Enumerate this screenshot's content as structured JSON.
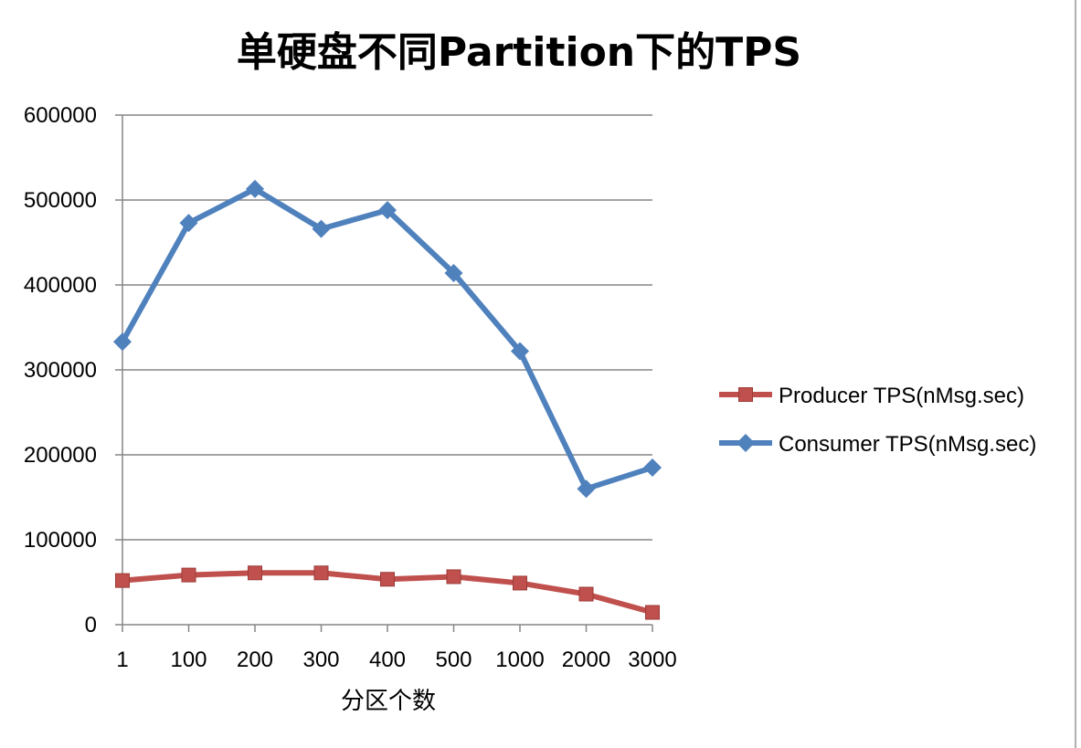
{
  "chart_data": {
    "type": "line",
    "title": "单硬盘不同Partition下的TPS",
    "xlabel": "分区个数",
    "ylabel": "",
    "categories": [
      "1",
      "100",
      "200",
      "300",
      "400",
      "500",
      "1000",
      "2000",
      "3000"
    ],
    "ylim": [
      0,
      600000
    ],
    "yticks": [
      0,
      100000,
      200000,
      300000,
      400000,
      500000,
      600000
    ],
    "ytick_labels": [
      "0",
      "100000",
      "200000",
      "300000",
      "400000",
      "500000",
      "600000"
    ],
    "grid": true,
    "legend_position": "right",
    "series": [
      {
        "name": "Producer TPS(nMsg.sec)",
        "color": "#c0504d",
        "marker": "square",
        "values": [
          52000,
          58500,
          61000,
          61000,
          53500,
          56500,
          49000,
          36000,
          14500
        ]
      },
      {
        "name": "Consumer TPS(nMsg.sec)",
        "color": "#4f81bd",
        "marker": "diamond",
        "values": [
          333000,
          473000,
          513000,
          466000,
          488000,
          414000,
          322000,
          160000,
          185000
        ]
      }
    ]
  }
}
